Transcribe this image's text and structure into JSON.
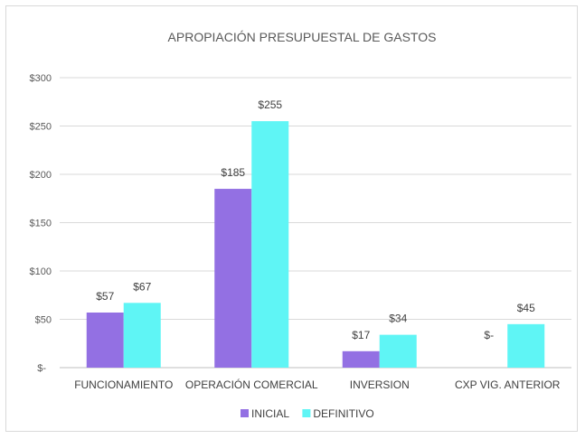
{
  "chart_data": {
    "type": "bar",
    "title": "APROPIACIÓN PRESUPUESTAL DE GASTOS",
    "xlabel": "",
    "ylabel": "",
    "categories": [
      "FUNCIONAMIENTO",
      "OPERACIÓN COMERCIAL",
      "INVERSION",
      "CXP VIG. ANTERIOR"
    ],
    "series": [
      {
        "name": "INICIAL",
        "values": [
          57,
          185,
          17,
          0
        ],
        "labels": [
          "$57",
          "$185",
          "$17",
          "$-"
        ],
        "color": "#9370e3"
      },
      {
        "name": "DEFINITIVO",
        "values": [
          67,
          255,
          34,
          45
        ],
        "labels": [
          "$67",
          "$255",
          "$34",
          "$45"
        ],
        "color": "#5ff5f5"
      }
    ],
    "ylim": [
      0,
      300
    ],
    "yticks": [
      0,
      50,
      100,
      150,
      200,
      250,
      300
    ],
    "ytick_labels": [
      "$-",
      "$50",
      "$100",
      "$150",
      "$200",
      "$250",
      "$300"
    ],
    "grid": true,
    "legend_position": "bottom"
  }
}
